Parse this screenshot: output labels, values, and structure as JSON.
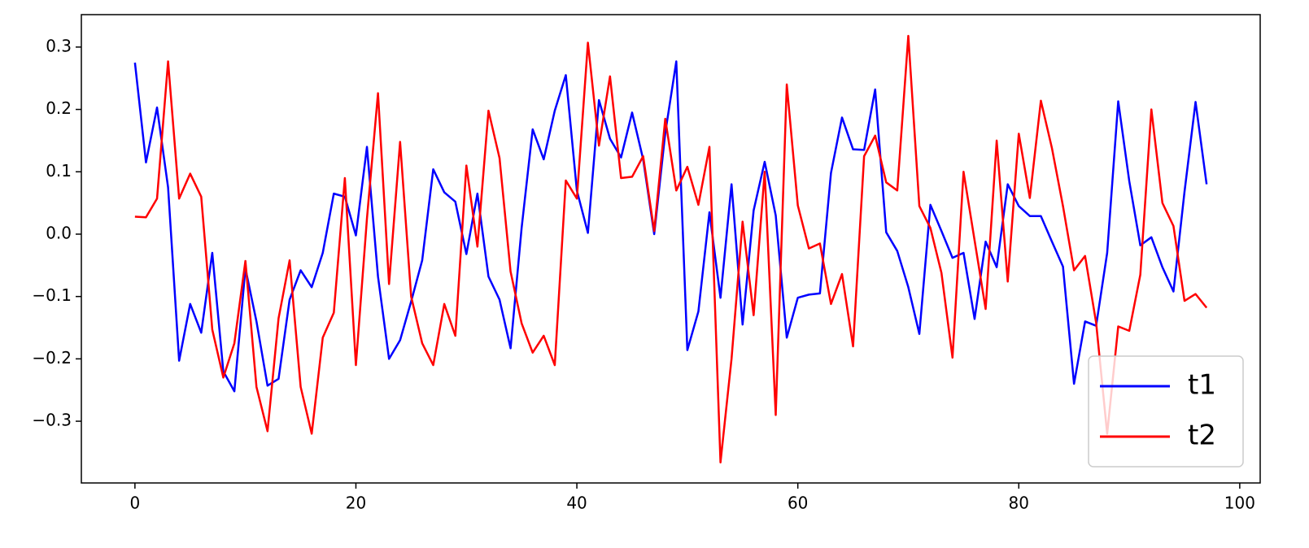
{
  "chart_data": {
    "type": "line",
    "x": [
      0,
      1,
      2,
      3,
      4,
      5,
      6,
      7,
      8,
      9,
      10,
      11,
      12,
      13,
      14,
      15,
      16,
      17,
      18,
      19,
      20,
      21,
      22,
      23,
      24,
      25,
      26,
      27,
      28,
      29,
      30,
      31,
      32,
      33,
      34,
      35,
      36,
      37,
      38,
      39,
      40,
      41,
      42,
      43,
      44,
      45,
      46,
      47,
      48,
      49,
      50,
      51,
      52,
      53,
      54,
      55,
      56,
      57,
      58,
      59,
      60,
      61,
      62,
      63,
      64,
      65,
      66,
      67,
      68,
      69,
      70,
      71,
      72,
      73,
      74,
      75,
      76,
      77,
      78,
      79,
      80,
      81,
      82,
      83,
      84,
      85,
      86,
      87,
      88,
      89,
      90,
      91,
      92,
      93,
      94,
      95,
      96,
      97
    ],
    "series": [
      {
        "name": "t1",
        "color": "#0000ff",
        "values": [
          0.275,
          0.115,
          0.203,
          0.075,
          -0.203,
          -0.112,
          -0.158,
          -0.03,
          -0.22,
          -0.252,
          -0.055,
          -0.14,
          -0.243,
          -0.232,
          -0.105,
          -0.058,
          -0.085,
          -0.03,
          0.065,
          0.06,
          -0.002,
          0.14,
          -0.068,
          -0.2,
          -0.17,
          -0.108,
          -0.042,
          0.104,
          0.067,
          0.052,
          -0.032,
          0.065,
          -0.068,
          -0.105,
          -0.183,
          0.01,
          0.168,
          0.12,
          0.198,
          0.255,
          0.07,
          0.002,
          0.215,
          0.153,
          0.123,
          0.195,
          0.12,
          0.0,
          0.162,
          0.277,
          -0.186,
          -0.124,
          0.035,
          -0.102,
          0.08,
          -0.145,
          0.038,
          0.116,
          0.03,
          -0.166,
          -0.102,
          -0.097,
          -0.095,
          0.098,
          0.187,
          0.136,
          0.135,
          0.232,
          0.003,
          -0.027,
          -0.085,
          -0.16,
          0.047,
          0.005,
          -0.038,
          -0.03,
          -0.136,
          -0.012,
          -0.053,
          0.08,
          0.045,
          0.029,
          0.029,
          -0.012,
          -0.052,
          -0.24,
          -0.14,
          -0.147,
          -0.03,
          0.213,
          0.085,
          -0.018,
          -0.005,
          -0.053,
          -0.092,
          0.068,
          0.212,
          0.08
        ]
      },
      {
        "name": "t2",
        "color": "#ff0000",
        "values": [
          0.028,
          0.027,
          0.057,
          0.277,
          0.057,
          0.097,
          0.06,
          -0.153,
          -0.23,
          -0.175,
          -0.043,
          -0.245,
          -0.316,
          -0.135,
          -0.042,
          -0.245,
          -0.32,
          -0.166,
          -0.126,
          0.09,
          -0.21,
          0.025,
          0.226,
          -0.08,
          0.148,
          -0.1,
          -0.175,
          -0.21,
          -0.112,
          -0.163,
          0.11,
          -0.02,
          0.198,
          0.122,
          -0.06,
          -0.143,
          -0.19,
          -0.163,
          -0.21,
          0.086,
          0.057,
          0.307,
          0.142,
          0.253,
          0.09,
          0.092,
          0.125,
          0.005,
          0.185,
          0.07,
          0.108,
          0.047,
          0.14,
          -0.366,
          -0.2,
          0.02,
          -0.13,
          0.1,
          -0.29,
          0.24,
          0.046,
          -0.023,
          -0.015,
          -0.112,
          -0.064,
          -0.18,
          0.125,
          0.158,
          0.083,
          0.07,
          0.318,
          0.045,
          0.01,
          -0.062,
          -0.198,
          0.1,
          -0.01,
          -0.12,
          0.15,
          -0.076,
          0.161,
          0.058,
          0.214,
          0.138,
          0.045,
          -0.058,
          -0.035,
          -0.142,
          -0.32,
          -0.148,
          -0.155,
          -0.065,
          0.2,
          0.05,
          0.013,
          -0.107,
          -0.096,
          -0.118
        ]
      }
    ],
    "xlim": [
      -4.85,
      101.85
    ],
    "xticks": [
      0,
      20,
      40,
      60,
      80,
      100
    ],
    "ylim": [
      -0.399,
      0.352
    ],
    "yticks": [
      {
        "value": -0.3,
        "label": "−0.3"
      },
      {
        "value": -0.2,
        "label": "−0.2"
      },
      {
        "value": -0.1,
        "label": "−0.1"
      },
      {
        "value": 0,
        "label": "0.0"
      },
      0.1,
      0.2,
      0.3
    ],
    "legend": "lower right"
  }
}
